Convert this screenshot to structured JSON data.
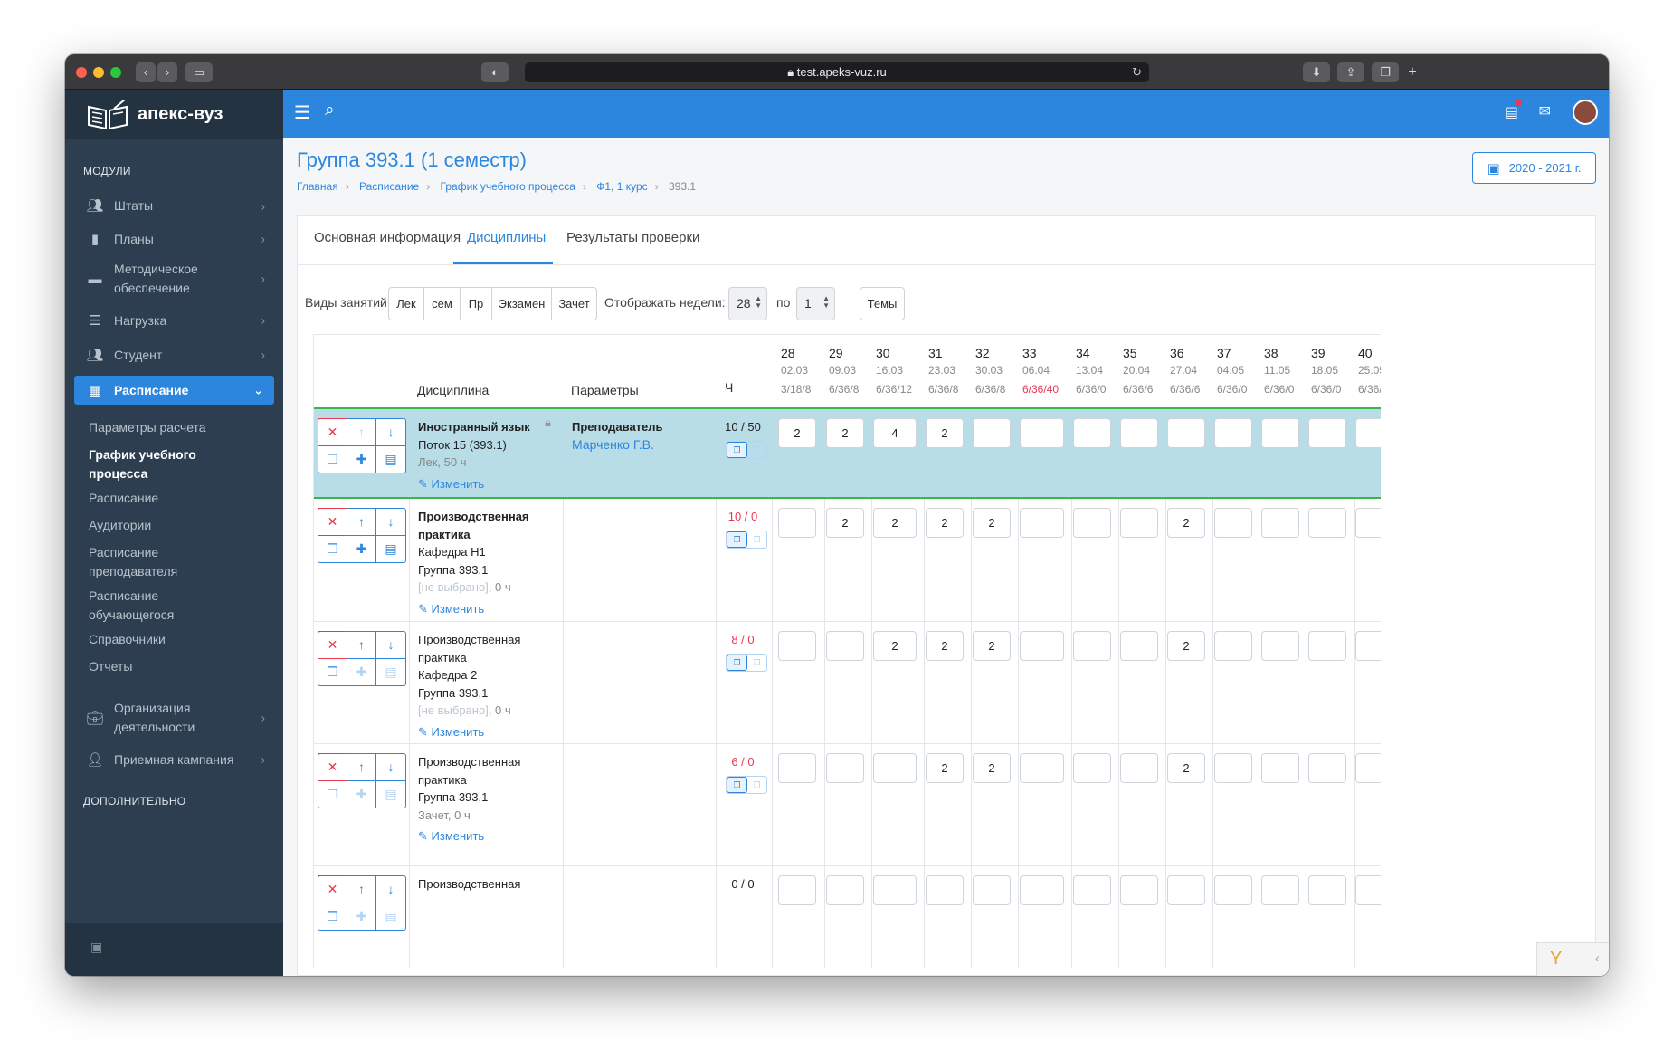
{
  "browser": {
    "url": "test.apeks-vuz.ru"
  },
  "app": {
    "brand": "апекс-вуз"
  },
  "sidebar": {
    "section_modules": "МОДУЛИ",
    "section_extra": "ДОПОЛНИТЕЛЬНО",
    "items": [
      {
        "label": "Штаты",
        "icon": "users-icon"
      },
      {
        "label": "Планы",
        "icon": "file-icon"
      },
      {
        "label": "Методическое обеспечение",
        "icon": "folder-icon"
      },
      {
        "label": "Нагрузка",
        "icon": "server-icon"
      },
      {
        "label": "Студент",
        "icon": "users-icon"
      },
      {
        "label": "Расписание",
        "icon": "calendar-icon"
      }
    ],
    "sub_items": [
      {
        "label": "Параметры расчета"
      },
      {
        "label": "График учебного процесса"
      },
      {
        "label": "Расписание"
      },
      {
        "label": "Аудитории"
      },
      {
        "label": "Расписание преподавателя"
      },
      {
        "label": "Расписание обучающегося"
      },
      {
        "label": "Справочники"
      },
      {
        "label": "Отчеты"
      }
    ],
    "bottom_items": [
      {
        "label": "Организация деятельности",
        "icon": "briefcase-icon"
      },
      {
        "label": "Приемная кампания",
        "icon": "user-plus-icon"
      }
    ]
  },
  "page": {
    "title": "Группа 393.1 (1 семестр)",
    "breadcrumbs": [
      "Главная",
      "Расписание",
      "График учебного процесса",
      "Ф1, 1 курс",
      "393.1"
    ],
    "year_button": "2020 - 2021 г."
  },
  "tabs": [
    "Основная информация",
    "Дисциплины",
    "Результаты проверки"
  ],
  "filters": {
    "types_label": "Виды занятий",
    "types": [
      "Лек",
      "сем",
      "Пр",
      "Экзамен",
      "Зачет"
    ],
    "weeks_label": "Отображать недели: с",
    "week_from": "28",
    "to_label": "по",
    "week_to": "1",
    "topics_button": "Темы"
  },
  "table": {
    "col_discipline": "Дисциплина",
    "col_params": "Параметры",
    "col_hours": "Ч",
    "weeks": [
      {
        "n": "28",
        "date": "02.03",
        "load": "3/18/8"
      },
      {
        "n": "29",
        "date": "09.03",
        "load": "6/36/8"
      },
      {
        "n": "30",
        "date": "16.03",
        "load": "6/36/12"
      },
      {
        "n": "31",
        "date": "23.03",
        "load": "6/36/8"
      },
      {
        "n": "32",
        "date": "30.03",
        "load": "6/36/8"
      },
      {
        "n": "33",
        "date": "06.04",
        "load": "6/36/40",
        "red": true
      },
      {
        "n": "34",
        "date": "13.04",
        "load": "6/36/0"
      },
      {
        "n": "35",
        "date": "20.04",
        "load": "6/36/6"
      },
      {
        "n": "36",
        "date": "27.04",
        "load": "6/36/6"
      },
      {
        "n": "37",
        "date": "04.05",
        "load": "6/36/0"
      },
      {
        "n": "38",
        "date": "11.05",
        "load": "6/36/0"
      },
      {
        "n": "39",
        "date": "18.05",
        "load": "6/36/0"
      },
      {
        "n": "40",
        "date": "25.05",
        "load": "6/36/"
      }
    ],
    "edit_label": "Изменить",
    "rows": [
      {
        "name": "Иностранный язык",
        "lines": [
          "Поток 15 (393.1)"
        ],
        "meta": "Лек, 50 ч",
        "param_title": "Преподаватель",
        "param_value": "Марченко Г.В.",
        "hours": "10 / 50",
        "hours_red": false,
        "cells": [
          "2",
          "2",
          "4",
          "2",
          "",
          "",
          "",
          "",
          "",
          "",
          "",
          "",
          ""
        ],
        "selected": true
      },
      {
        "name": "Производственная практика",
        "lines": [
          "Кафедра Н1",
          "Группа 393.1"
        ],
        "placeholder": "[не выбрано]",
        "meta": ", 0 ч",
        "param_title": "",
        "param_value": "",
        "hours": "10 / 0",
        "hours_red": true,
        "cells": [
          "",
          "2",
          "2",
          "2",
          "2",
          "",
          "",
          "",
          "2",
          "",
          "",
          "",
          ""
        ]
      },
      {
        "name": "Производственная практика",
        "lines": [
          "Кафедра 2",
          "Группа 393.1"
        ],
        "placeholder": "[не выбрано]",
        "meta": ", 0 ч",
        "param_title": "",
        "param_value": "",
        "hours": "8 / 0",
        "hours_red": true,
        "cells": [
          "",
          "",
          "2",
          "2",
          "2",
          "",
          "",
          "",
          "2",
          "",
          "",
          "",
          ""
        ]
      },
      {
        "name": "Производственная практика",
        "lines": [
          "Группа 393.1"
        ],
        "meta": "Зачет, 0 ч",
        "param_title": "",
        "param_value": "",
        "hours": "6 / 0",
        "hours_red": true,
        "cells": [
          "",
          "",
          "",
          "2",
          "2",
          "",
          "",
          "",
          "2",
          "",
          "",
          "",
          ""
        ]
      },
      {
        "name": "Производственная",
        "lines": [],
        "meta": "",
        "param_title": "",
        "param_value": "",
        "hours": "0 / 0",
        "hours_red": false,
        "cells": [
          "",
          "",
          "",
          "",
          "",
          "",
          "",
          "",
          "",
          "",
          "",
          "",
          ""
        ]
      }
    ]
  },
  "colors": {
    "accent": "#2d86de",
    "sidebar": "#2c3e50",
    "selected_row": "#b8dde6",
    "danger": "#e83a52",
    "success": "#3ab54a"
  }
}
